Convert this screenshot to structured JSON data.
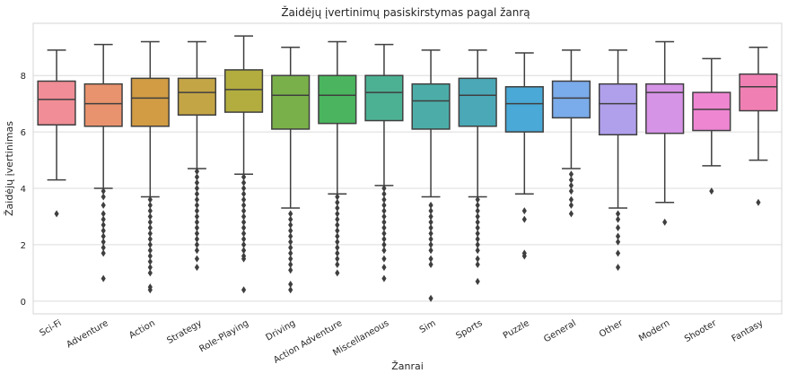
{
  "chart_data": {
    "type": "box",
    "title": "Žaidėjų įvertinimų pasiskirstymas pagal žanrą",
    "xlabel": "Žanrai",
    "ylabel": "Žaidėjų įvertinimas",
    "ylim": [
      -0.45,
      9.85
    ],
    "yticks": [
      0,
      2,
      4,
      6,
      8
    ],
    "grid": true,
    "categories": [
      "Sci-Fi",
      "Adventure",
      "Action",
      "Strategy",
      "Role-Playing",
      "Driving",
      "Action Adventure",
      "Miscellaneous",
      "Sim",
      "Sports",
      "Puzzle",
      "General",
      "Other",
      "Modern",
      "Shooter",
      "Fantasy"
    ],
    "colors": [
      "#f08d96",
      "#e8936d",
      "#d19c43",
      "#c4a546",
      "#b2ad3e",
      "#7ab04a",
      "#4ab55e",
      "#4cb193",
      "#4cada8",
      "#4aa8b7",
      "#4aa9d6",
      "#7aabea",
      "#b0a0ec",
      "#d694e6",
      "#ee86d2",
      "#f080b4"
    ],
    "boxes": [
      {
        "whislo": 4.3,
        "q1": 6.25,
        "med": 7.15,
        "q3": 7.8,
        "whishi": 8.9,
        "fliers": [
          3.1
        ]
      },
      {
        "whislo": 4.0,
        "q1": 6.2,
        "med": 7.0,
        "q3": 7.7,
        "whishi": 9.1,
        "fliers": [
          3.9,
          3.7,
          3.4,
          3.1,
          2.9,
          2.7,
          2.5,
          2.3,
          2.1,
          1.9,
          1.7,
          0.8
        ]
      },
      {
        "whislo": 3.7,
        "q1": 6.2,
        "med": 7.2,
        "q3": 7.9,
        "whishi": 9.2,
        "fliers": [
          3.6,
          3.4,
          3.2,
          3.0,
          2.8,
          2.6,
          2.4,
          2.2,
          2.0,
          1.8,
          1.6,
          1.4,
          1.2,
          1.0,
          0.5,
          0.4
        ]
      },
      {
        "whislo": 4.7,
        "q1": 6.6,
        "med": 7.4,
        "q3": 7.9,
        "whishi": 9.2,
        "fliers": [
          4.6,
          4.4,
          4.2,
          4.0,
          3.8,
          3.6,
          3.4,
          3.2,
          3.0,
          2.8,
          2.6,
          2.4,
          2.2,
          2.0,
          1.8,
          1.5,
          1.2
        ]
      },
      {
        "whislo": 4.5,
        "q1": 6.7,
        "med": 7.5,
        "q3": 8.2,
        "whishi": 9.4,
        "fliers": [
          4.4,
          4.2,
          4.0,
          3.8,
          3.6,
          3.4,
          3.2,
          3.0,
          2.8,
          2.6,
          2.4,
          2.2,
          2.0,
          1.8,
          1.6,
          1.5,
          0.4
        ]
      },
      {
        "whislo": 3.3,
        "q1": 6.1,
        "med": 7.3,
        "q3": 8.0,
        "whishi": 9.0,
        "fliers": [
          3.1,
          2.9,
          2.7,
          2.5,
          2.3,
          2.1,
          1.9,
          1.7,
          1.5,
          1.3,
          1.1,
          0.6,
          0.4
        ]
      },
      {
        "whislo": 3.8,
        "q1": 6.3,
        "med": 7.3,
        "q3": 8.0,
        "whishi": 9.2,
        "fliers": [
          3.7,
          3.5,
          3.3,
          3.1,
          2.9,
          2.7,
          2.5,
          2.3,
          2.1,
          1.9,
          1.7,
          1.5,
          1.3,
          1.0
        ]
      },
      {
        "whislo": 4.1,
        "q1": 6.4,
        "med": 7.4,
        "q3": 8.0,
        "whishi": 9.1,
        "fliers": [
          4.0,
          3.8,
          3.6,
          3.4,
          3.2,
          3.0,
          2.8,
          2.6,
          2.4,
          2.2,
          2.0,
          1.8,
          1.5,
          1.2,
          0.8
        ]
      },
      {
        "whislo": 3.7,
        "q1": 6.1,
        "med": 7.1,
        "q3": 7.7,
        "whishi": 8.9,
        "fliers": [
          3.4,
          3.2,
          3.0,
          2.8,
          2.6,
          2.4,
          2.2,
          2.0,
          1.8,
          1.5,
          1.3,
          0.1
        ]
      },
      {
        "whislo": 3.7,
        "q1": 6.2,
        "med": 7.3,
        "q3": 7.9,
        "whishi": 8.9,
        "fliers": [
          3.6,
          3.4,
          3.2,
          3.0,
          2.8,
          2.6,
          2.4,
          2.2,
          2.0,
          1.8,
          1.5,
          1.3,
          0.7
        ]
      },
      {
        "whislo": 3.8,
        "q1": 6.0,
        "med": 7.0,
        "q3": 7.6,
        "whishi": 8.8,
        "fliers": [
          3.2,
          2.9,
          1.7,
          1.6
        ]
      },
      {
        "whislo": 4.7,
        "q1": 6.5,
        "med": 7.2,
        "q3": 7.8,
        "whishi": 8.9,
        "fliers": [
          4.5,
          4.3,
          4.1,
          3.9,
          3.6,
          3.4,
          3.1
        ]
      },
      {
        "whislo": 3.3,
        "q1": 5.9,
        "med": 7.0,
        "q3": 7.7,
        "whishi": 8.9,
        "fliers": [
          3.1,
          2.9,
          2.6,
          2.3,
          2.1,
          1.7,
          1.2
        ]
      },
      {
        "whislo": 3.5,
        "q1": 5.95,
        "med": 7.4,
        "q3": 7.7,
        "whishi": 9.2,
        "fliers": [
          2.8
        ]
      },
      {
        "whislo": 4.8,
        "q1": 6.05,
        "med": 6.8,
        "q3": 7.4,
        "whishi": 8.6,
        "fliers": [
          3.9
        ]
      },
      {
        "whislo": 5.0,
        "q1": 6.75,
        "med": 7.6,
        "q3": 8.05,
        "whishi": 9.0,
        "fliers": [
          3.5
        ]
      }
    ]
  }
}
